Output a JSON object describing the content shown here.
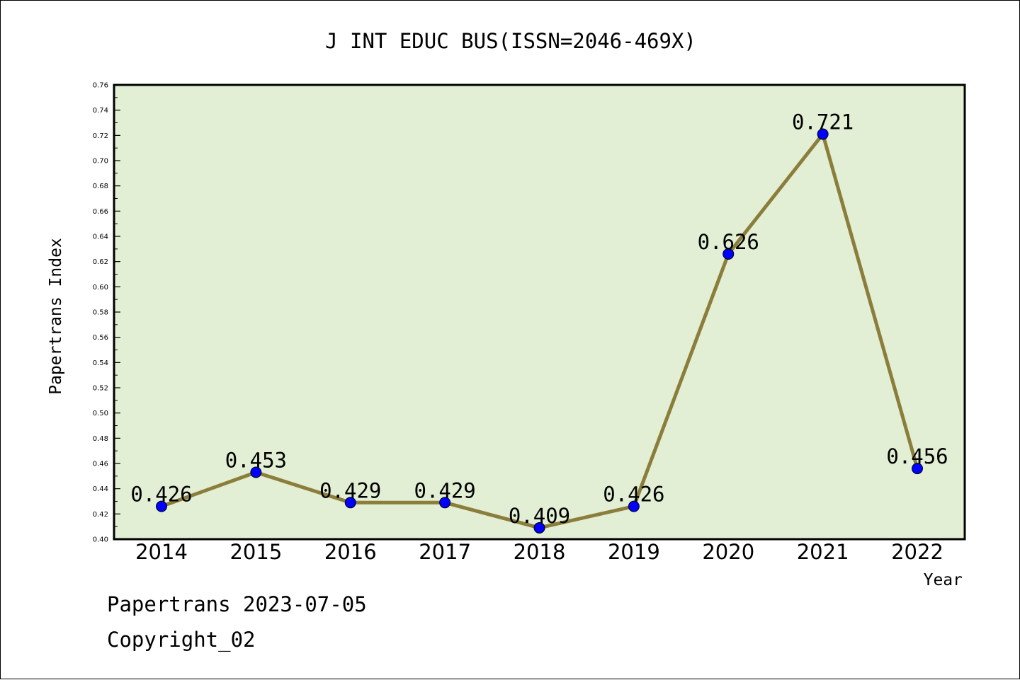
{
  "chart_data": {
    "type": "line",
    "title": "J INT EDUC BUS(ISSN=2046-469X)",
    "xlabel": "Year",
    "ylabel": "Papertrans Index",
    "categories": [
      "2014",
      "2015",
      "2016",
      "2017",
      "2018",
      "2019",
      "2020",
      "2021",
      "2022"
    ],
    "series": [
      {
        "values": [
          0.426,
          0.453,
          0.429,
          0.429,
          0.409,
          0.426,
          0.626,
          0.721,
          0.456
        ],
        "data_labels": [
          "0.426",
          "0.453",
          "0.429",
          "0.429",
          "0.409",
          "0.426",
          "0.626",
          "0.721",
          "0.456"
        ]
      }
    ],
    "ylim": [
      0.4,
      0.76
    ],
    "y_ticks": [
      "0.40",
      "0.42",
      "0.44",
      "0.46",
      "0.48",
      "0.50",
      "0.52",
      "0.54",
      "0.56",
      "0.58",
      "0.60",
      "0.62",
      "0.64",
      "0.66",
      "0.68",
      "0.70",
      "0.72",
      "0.74",
      "0.76"
    ],
    "grid": false,
    "legend": "none",
    "colors": {
      "plot_background": "#e2efd5",
      "line": "#8b7d3a",
      "marker": "#0000ff",
      "axis": "#000000"
    }
  },
  "footer": {
    "date_text": "Papertrans 2023-07-05",
    "copyright_text": "Copyright_02"
  }
}
